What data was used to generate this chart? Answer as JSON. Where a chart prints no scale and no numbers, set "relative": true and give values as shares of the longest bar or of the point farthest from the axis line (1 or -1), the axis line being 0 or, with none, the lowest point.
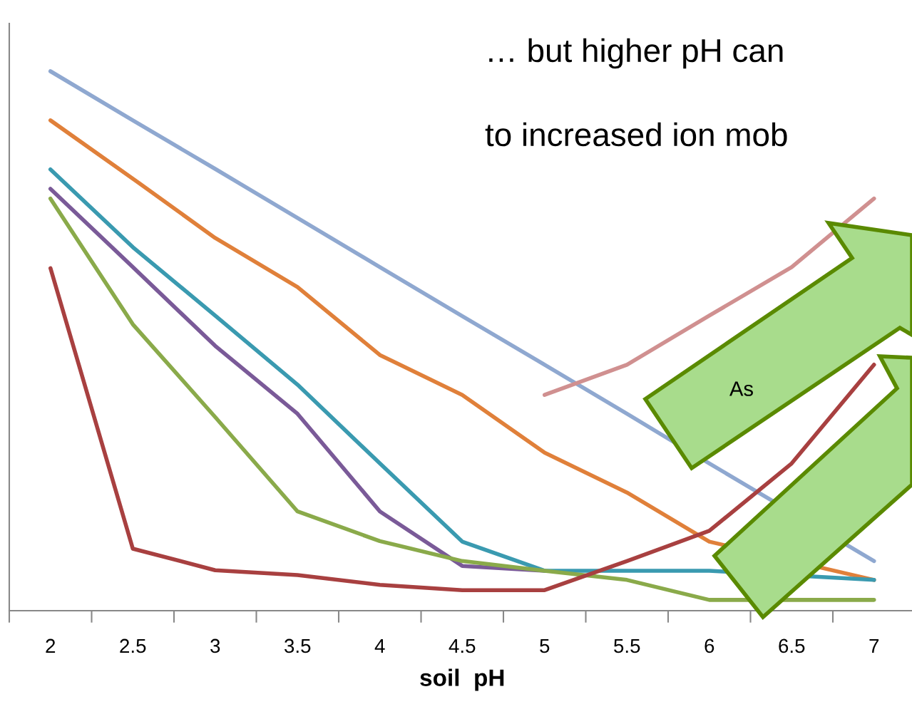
{
  "chart_data": {
    "type": "line",
    "relative": true,
    "xlabel": "soil  pH",
    "categories": [
      "2",
      "2.5",
      "3",
      "3.5",
      "4",
      "4.5",
      "5",
      "5.5",
      "6",
      "6.5",
      "7"
    ],
    "series": [
      {
        "color": "#8fa8d0",
        "values": [
          1.0,
          0.909,
          0.819,
          0.728,
          0.637,
          0.546,
          0.456,
          0.365,
          0.273,
          null,
          0.092
        ]
      },
      {
        "color": "#e0803a",
        "values": [
          0.909,
          0.801,
          0.691,
          0.6,
          0.474,
          0.4,
          0.293,
          0.219,
          0.128,
          null,
          0.057
        ]
      },
      {
        "color": "#7a5a98",
        "values": [
          0.782,
          0.637,
          0.491,
          0.365,
          0.184,
          0.083,
          0.074,
          null,
          null,
          null,
          null
        ]
      },
      {
        "color": "#3a9ab0",
        "values": [
          0.818,
          0.674,
          0.547,
          0.419,
          0.273,
          0.128,
          0.074,
          0.074,
          0.074,
          null,
          0.057
        ]
      },
      {
        "color": "#8aaa4a",
        "values": [
          0.764,
          0.531,
          0.359,
          0.184,
          0.129,
          0.092,
          0.074,
          0.057,
          0.02,
          0.02,
          0.02
        ]
      },
      {
        "color": "#a84040",
        "values": [
          0.635,
          0.115,
          0.075,
          0.066,
          0.048,
          0.038,
          0.038,
          0.092,
          0.148,
          0.273,
          0.456
        ]
      },
      {
        "color": "#d09090",
        "values": [
          null,
          null,
          null,
          null,
          null,
          null,
          0.4,
          0.456,
          0.547,
          0.637,
          0.764
        ]
      }
    ],
    "annotations": [
      "… but higher pH can",
      "to increased ion mob",
      "As"
    ],
    "tick_labels": "x",
    "grid": false,
    "legend": false,
    "marker": "none",
    "line_style": "solid"
  }
}
